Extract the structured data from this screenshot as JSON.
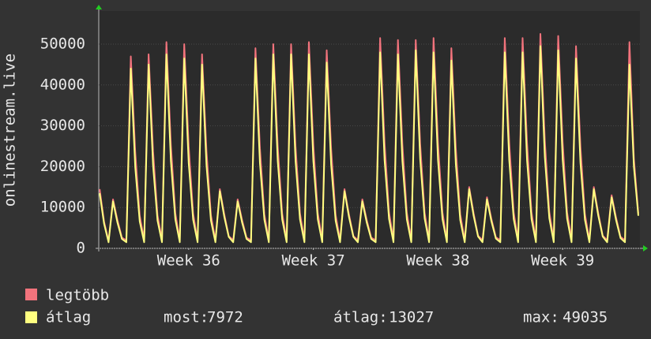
{
  "chart_data": {
    "type": "line",
    "ylabel": "onlinestream.live",
    "xlim": [
      -1.55,
      28.84
    ],
    "ylim": [
      0,
      58100
    ],
    "yticks": [
      0,
      10000,
      20000,
      30000,
      40000,
      50000
    ],
    "xticks": [
      {
        "value": 3.5,
        "label": "Week 36"
      },
      {
        "value": 10.5,
        "label": "Week 37"
      },
      {
        "value": 17.5,
        "label": "Week 38"
      },
      {
        "value": 24.5,
        "label": "Week 39"
      }
    ],
    "grid": true,
    "x": [
      -1.5,
      -1.25,
      -1,
      -0.75,
      -0.5,
      -0.25,
      0,
      0.25,
      0.5,
      0.75,
      1,
      1.25,
      1.5,
      1.75,
      2,
      2.25,
      2.5,
      2.75,
      3,
      3.25,
      3.5,
      3.75,
      4,
      4.25,
      4.5,
      4.75,
      5,
      5.25,
      5.5,
      5.75,
      6,
      6.25,
      6.5,
      6.75,
      7,
      7.25,
      7.5,
      7.75,
      8,
      8.25,
      8.5,
      8.75,
      9,
      9.25,
      9.5,
      9.75,
      10,
      10.25,
      10.5,
      10.75,
      11,
      11.25,
      11.5,
      11.75,
      12,
      12.25,
      12.5,
      12.75,
      13,
      13.25,
      13.5,
      13.75,
      14,
      14.25,
      14.5,
      14.75,
      15,
      15.25,
      15.5,
      15.75,
      16,
      16.25,
      16.5,
      16.75,
      17,
      17.25,
      17.5,
      17.75,
      18,
      18.25,
      18.5,
      18.75,
      19,
      19.25,
      19.5,
      19.75,
      20,
      20.25,
      20.5,
      20.75,
      21,
      21.25,
      21.5,
      21.75,
      22,
      22.25,
      22.5,
      22.75,
      23,
      23.25,
      23.5,
      23.75,
      24,
      24.25,
      24.5,
      24.75,
      25,
      25.25,
      25.5,
      25.75,
      26,
      26.25,
      26.5,
      26.75,
      27,
      27.25,
      27.5,
      27.75,
      28,
      28.25,
      28.5,
      28.75
    ],
    "series": [
      {
        "name": "legtöbb",
        "color": "#f2737c",
        "values": [
          14500,
          6500,
          1800,
          12000,
          6900,
          2600,
          2000,
          47000,
          23500,
          8000,
          2000,
          47500,
          23800,
          8100,
          2000,
          50500,
          25300,
          8600,
          2000,
          50000,
          25000,
          8500,
          2000,
          47500,
          23800,
          8100,
          2000,
          14500,
          8300,
          3000,
          2000,
          12000,
          6900,
          2600,
          2000,
          49000,
          24500,
          8300,
          2000,
          50000,
          25000,
          8500,
          2000,
          50000,
          25000,
          8500,
          2000,
          50500,
          25300,
          8600,
          2000,
          48500,
          24300,
          8200,
          2000,
          14500,
          8300,
          3000,
          2000,
          12000,
          6900,
          2600,
          2000,
          51500,
          25800,
          8800,
          2000,
          51000,
          25500,
          8700,
          2000,
          51000,
          25500,
          8700,
          2000,
          51500,
          25800,
          8800,
          2000,
          49000,
          24500,
          8300,
          2000,
          15000,
          8600,
          3100,
          2000,
          12500,
          7200,
          2700,
          2000,
          51500,
          25800,
          8800,
          2000,
          51500,
          25800,
          8800,
          2000,
          52500,
          26300,
          8900,
          2000,
          52000,
          26000,
          8800,
          2000,
          49500,
          24800,
          8400,
          2000,
          15000,
          8600,
          3100,
          2000,
          13000,
          7500,
          2800,
          2000,
          50500,
          22000,
          8500
        ]
      },
      {
        "name": "átlag",
        "color": "#ffff80",
        "values": [
          13500,
          6000,
          1500,
          11500,
          6300,
          2300,
          1500,
          44000,
          19800,
          6600,
          1500,
          45000,
          20300,
          6800,
          1500,
          47500,
          21400,
          7100,
          1500,
          46500,
          20900,
          7000,
          1500,
          45000,
          20300,
          6800,
          1500,
          14000,
          7700,
          2800,
          1500,
          11500,
          6300,
          2300,
          1500,
          46500,
          20900,
          7000,
          1500,
          47500,
          21400,
          7100,
          1500,
          47500,
          21400,
          7100,
          1500,
          47500,
          21400,
          7100,
          1500,
          45500,
          20500,
          6800,
          1500,
          14000,
          7700,
          2800,
          1500,
          11500,
          6300,
          2300,
          1500,
          48000,
          21600,
          7200,
          1500,
          47500,
          21400,
          7100,
          1500,
          48500,
          21800,
          7300,
          1500,
          48000,
          21600,
          7200,
          1500,
          46000,
          20700,
          6900,
          1500,
          14500,
          8000,
          2900,
          1500,
          12000,
          6600,
          2400,
          1500,
          48000,
          21600,
          7200,
          1500,
          48000,
          21600,
          7200,
          1500,
          49500,
          22300,
          7400,
          1500,
          48500,
          21800,
          7300,
          1500,
          46500,
          20900,
          7000,
          1500,
          14500,
          8000,
          2900,
          1500,
          12500,
          6900,
          2500,
          1500,
          45000,
          20000,
          7972
        ]
      }
    ],
    "stats": [
      {
        "label": "most:",
        "value": 7972
      },
      {
        "label": "átlag:",
        "value": 13027
      },
      {
        "label": "max:",
        "value": 49035
      }
    ]
  }
}
